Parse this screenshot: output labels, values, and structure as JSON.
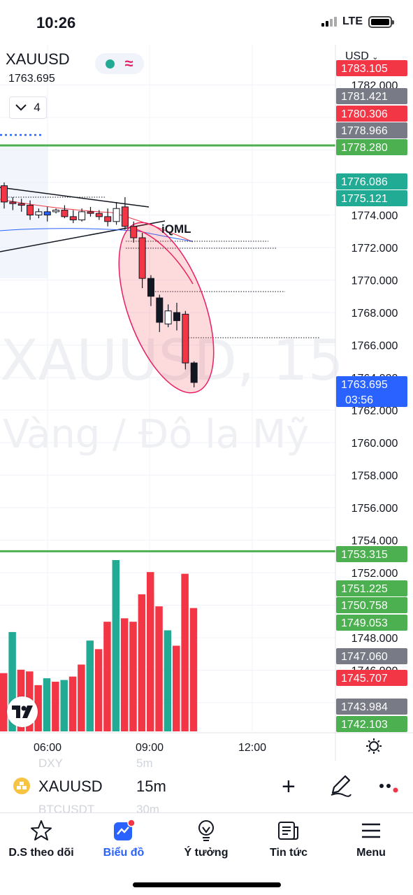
{
  "status_bar": {
    "time": "10:26",
    "network": "LTE"
  },
  "legend": {
    "symbol": "XAUUSD",
    "price": "1763.695",
    "collapsed_count": "4"
  },
  "currency": "USD",
  "watermark": {
    "line1": "XAUUSD, 15",
    "line2": "Vàng / Đô la Mỹ"
  },
  "chart_data": {
    "type": "candlestick",
    "title": "XAUUSD",
    "interval": "15m",
    "price_axis": {
      "ylim": [
        1741.5,
        1784.0
      ],
      "ticks": [
        "1782.000",
        "1780.000",
        "1778.000",
        "1776.000",
        "1774.000",
        "1772.000",
        "1770.000",
        "1768.000",
        "1766.000",
        "1764.000",
        "1762.000",
        "1760.000",
        "1758.000",
        "1756.000",
        "1754.000",
        "1752.000",
        "1750.000",
        "1748.000",
        "1746.000",
        "1744.000"
      ]
    },
    "time_axis": {
      "ticks": [
        "06:00",
        "09:00",
        "12:00"
      ]
    },
    "candles": [
      {
        "o": 1775.8,
        "h": 1776.0,
        "l": 1774.4,
        "c": 1774.8
      },
      {
        "o": 1774.8,
        "h": 1775.1,
        "l": 1774.3,
        "c": 1774.7
      },
      {
        "o": 1774.7,
        "h": 1775.0,
        "l": 1774.2,
        "c": 1774.6
      },
      {
        "o": 1774.6,
        "h": 1774.9,
        "l": 1773.7,
        "c": 1774.0
      },
      {
        "o": 1774.0,
        "h": 1774.4,
        "l": 1773.8,
        "c": 1774.2
      },
      {
        "o": 1774.0,
        "h": 1774.5,
        "l": 1773.6,
        "c": 1774.2
      },
      {
        "o": 1774.2,
        "h": 1774.4,
        "l": 1774.1,
        "c": 1774.3
      },
      {
        "o": 1774.3,
        "h": 1774.6,
        "l": 1773.8,
        "c": 1773.9
      },
      {
        "o": 1773.9,
        "h": 1774.3,
        "l": 1773.5,
        "c": 1773.7
      },
      {
        "o": 1773.7,
        "h": 1774.4,
        "l": 1773.6,
        "c": 1774.2
      },
      {
        "o": 1774.2,
        "h": 1774.5,
        "l": 1773.9,
        "c": 1774.1
      },
      {
        "o": 1774.1,
        "h": 1774.3,
        "l": 1773.7,
        "c": 1773.9
      },
      {
        "o": 1773.9,
        "h": 1774.4,
        "l": 1773.3,
        "c": 1773.6
      },
      {
        "o": 1773.6,
        "h": 1774.8,
        "l": 1773.4,
        "c": 1774.4
      },
      {
        "o": 1774.5,
        "h": 1775.1,
        "l": 1773.1,
        "c": 1773.3
      },
      {
        "o": 1773.3,
        "h": 1773.6,
        "l": 1772.3,
        "c": 1772.6
      },
      {
        "o": 1772.6,
        "h": 1772.9,
        "l": 1769.5,
        "c": 1770.1
      },
      {
        "o": 1770.1,
        "h": 1770.3,
        "l": 1768.4,
        "c": 1769.0
      },
      {
        "o": 1768.9,
        "h": 1769.1,
        "l": 1766.8,
        "c": 1767.4
      },
      {
        "o": 1767.3,
        "h": 1768.5,
        "l": 1767.1,
        "c": 1768.1
      },
      {
        "o": 1768.0,
        "h": 1768.6,
        "l": 1766.9,
        "c": 1767.5
      },
      {
        "o": 1767.9,
        "h": 1768.1,
        "l": 1764.5,
        "c": 1764.9
      },
      {
        "o": 1764.9,
        "h": 1765.0,
        "l": 1763.4,
        "c": 1763.7
      }
    ],
    "volume": [
      {
        "v": 34,
        "up": false
      },
      {
        "v": 58,
        "up": true
      },
      {
        "v": 36,
        "up": false
      },
      {
        "v": 35,
        "up": false
      },
      {
        "v": 27,
        "up": false
      },
      {
        "v": 31,
        "up": true
      },
      {
        "v": 29,
        "up": false
      },
      {
        "v": 30,
        "up": true
      },
      {
        "v": 32,
        "up": false
      },
      {
        "v": 39,
        "up": false
      },
      {
        "v": 53,
        "up": true
      },
      {
        "v": 48,
        "up": false
      },
      {
        "v": 64,
        "up": false
      },
      {
        "v": 100,
        "up": true
      },
      {
        "v": 66,
        "up": false
      },
      {
        "v": 64,
        "up": false
      },
      {
        "v": 80,
        "up": false
      },
      {
        "v": 93,
        "up": false
      },
      {
        "v": 73,
        "up": false
      },
      {
        "v": 59,
        "up": true
      },
      {
        "v": 50,
        "up": false
      },
      {
        "v": 92,
        "up": false
      },
      {
        "v": 72,
        "up": false
      }
    ],
    "horizontal_levels": [
      1778.28,
      1753.315
    ],
    "annotations": [
      {
        "text": "iQML",
        "type": "label"
      },
      {
        "type": "ellipse",
        "label": ""
      }
    ],
    "price_labels": [
      {
        "value": "1783.105",
        "color": "#f23645"
      },
      {
        "value": "1781.421",
        "color": "#787b86"
      },
      {
        "value": "1780.306",
        "color": "#f23645"
      },
      {
        "value": "1778.966",
        "color": "#787b86"
      },
      {
        "value": "1778.280",
        "color": "#4caf50"
      },
      {
        "value": "1776.086",
        "color": "#22ab94"
      },
      {
        "value": "1775.121",
        "color": "#22ab94"
      },
      {
        "value": "1763.695",
        "color": "#2962ff",
        "countdown": "03:56"
      },
      {
        "value": "1753.315",
        "color": "#4caf50"
      },
      {
        "value": "1751.225",
        "color": "#4caf50"
      },
      {
        "value": "1750.758",
        "color": "#4caf50"
      },
      {
        "value": "1749.053",
        "color": "#4caf50"
      },
      {
        "value": "1747.060",
        "color": "#787b86"
      },
      {
        "value": "1745.707",
        "color": "#f23645"
      },
      {
        "value": "1743.984",
        "color": "#787b86"
      },
      {
        "value": "1742.103",
        "color": "#4caf50"
      }
    ],
    "colors": {
      "up": "#22ab94",
      "down": "#f23645",
      "level": "#4caf50",
      "ellipse": "#e91e63"
    }
  },
  "toolbar": {
    "symbol": "XAUUSD",
    "interval": "15m",
    "ghost_items": [
      "DXY",
      "5m",
      "BTCUSDT",
      "30m"
    ]
  },
  "tabs": [
    {
      "label": "D.S theo dõi",
      "icon": "star-icon"
    },
    {
      "label": "Biểu đồ",
      "icon": "chart-icon"
    },
    {
      "label": "Ý tưởng",
      "icon": "lightbulb-icon"
    },
    {
      "label": "Tin tức",
      "icon": "news-icon"
    },
    {
      "label": "Menu",
      "icon": "menu-icon"
    }
  ]
}
